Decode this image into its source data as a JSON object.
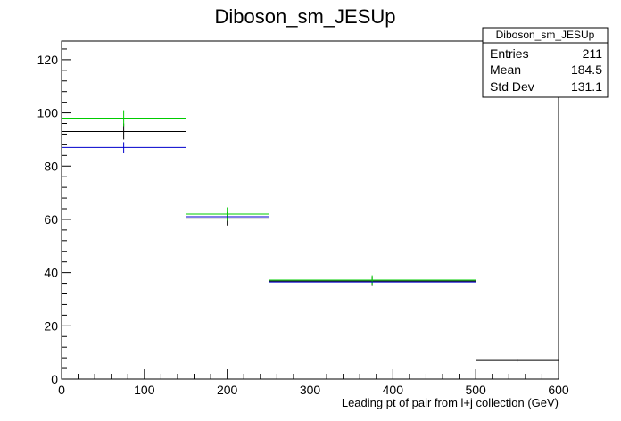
{
  "chart_data": {
    "type": "histogram",
    "title": "Diboson_sm_JESUp",
    "xlabel": "Leading pt of pair from l+j collection (GeV)",
    "ylabel": "",
    "xlim": [
      0,
      600
    ],
    "ylim": [
      0,
      127
    ],
    "x_ticks": [
      "0",
      "100",
      "200",
      "300",
      "400",
      "500",
      "600"
    ],
    "y_ticks": [
      "0",
      "20",
      "40",
      "60",
      "80",
      "100",
      "120"
    ],
    "bin_edges": [
      0,
      150,
      250,
      500,
      600
    ],
    "series": [
      {
        "color": "#000000",
        "values": [
          93,
          60.2,
          36.8,
          7
        ],
        "errors": [
          3,
          2.5,
          1.8,
          0.5
        ]
      },
      {
        "color": "#00cc00",
        "values": [
          98,
          62,
          37.2,
          null
        ],
        "errors": [
          3,
          2.5,
          1.8,
          null
        ]
      },
      {
        "color": "#0000cc",
        "values": [
          87,
          61,
          36.5,
          null
        ],
        "errors": [
          2,
          0,
          0,
          null
        ]
      }
    ],
    "stats": {
      "title": "Diboson_sm_JESUp",
      "rows": [
        {
          "label": "Entries",
          "value": "211"
        },
        {
          "label": "Mean",
          "value": "184.5"
        },
        {
          "label": "Std Dev",
          "value": "131.1"
        }
      ]
    }
  }
}
